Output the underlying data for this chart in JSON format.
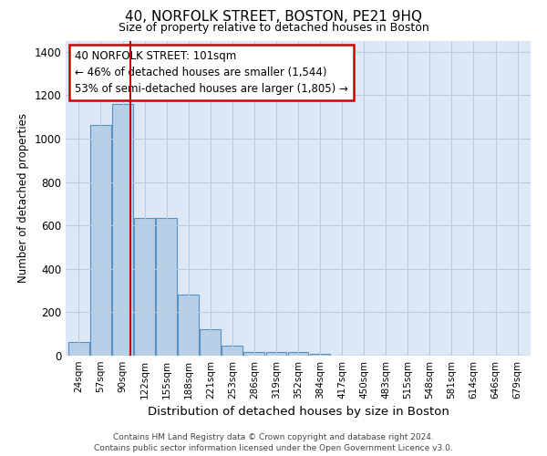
{
  "title": "40, NORFOLK STREET, BOSTON, PE21 9HQ",
  "subtitle": "Size of property relative to detached houses in Boston",
  "xlabel": "Distribution of detached houses by size in Boston",
  "ylabel": "Number of detached properties",
  "categories": [
    "24sqm",
    "57sqm",
    "90sqm",
    "122sqm",
    "155sqm",
    "188sqm",
    "221sqm",
    "253sqm",
    "286sqm",
    "319sqm",
    "352sqm",
    "384sqm",
    "417sqm",
    "450sqm",
    "483sqm",
    "515sqm",
    "548sqm",
    "581sqm",
    "614sqm",
    "646sqm",
    "679sqm"
  ],
  "bar_heights": [
    65,
    1065,
    1160,
    635,
    635,
    280,
    120,
    45,
    18,
    18,
    18,
    10,
    0,
    0,
    0,
    0,
    0,
    0,
    0,
    0,
    0
  ],
  "bar_color": "#b8cfe8",
  "bar_edgecolor": "#5a8fc2",
  "annotation_text": "40 NORFOLK STREET: 101sqm\n← 46% of detached houses are smaller (1,544)\n53% of semi-detached houses are larger (1,805) →",
  "annotation_box_color": "#ffffff",
  "annotation_box_edgecolor": "#cc0000",
  "ylim": [
    0,
    1450
  ],
  "yticks": [
    0,
    200,
    400,
    600,
    800,
    1000,
    1200,
    1400
  ],
  "background_color": "#ffffff",
  "plot_bg_color": "#dce8f5",
  "grid_color": "#b8cce0",
  "footer_line1": "Contains HM Land Registry data © Crown copyright and database right 2024.",
  "footer_line2": "Contains public sector information licensed under the Open Government Licence v3.0."
}
